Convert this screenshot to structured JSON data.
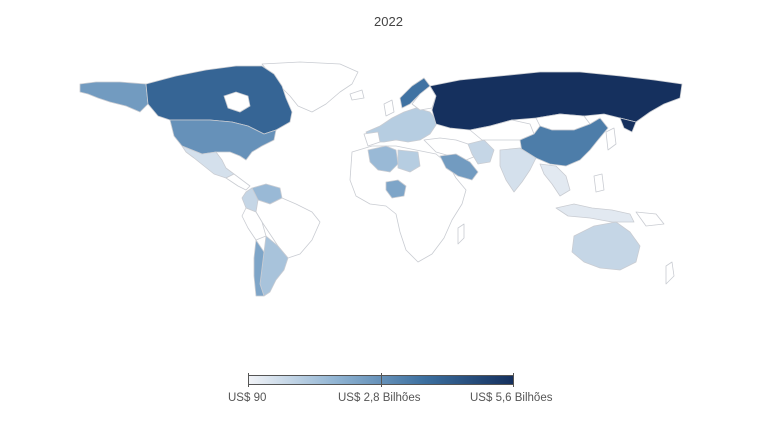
{
  "title": "2022",
  "legend": {
    "min_label": "US$ 90",
    "mid_label": "US$ 2,8 Bilhões",
    "max_label": "US$ 5,6 Bilhões",
    "colors": [
      "#f1f3f7",
      "#8fb3d2",
      "#3c6f9f",
      "#15305e"
    ]
  },
  "chart_data": {
    "type": "choropleth",
    "value_range": [
      90,
      5600000000
    ],
    "regions": [
      {
        "name": "Russia",
        "level": 1.0
      },
      {
        "name": "Canada",
        "level": 0.72
      },
      {
        "name": "Greenland",
        "level": 0.0
      },
      {
        "name": "Alaska",
        "level": 0.45
      },
      {
        "name": "United States",
        "level": 0.5
      },
      {
        "name": "China",
        "level": 0.6
      },
      {
        "name": "Norway",
        "level": 0.65
      },
      {
        "name": "Kazakhstan",
        "level": 0.0
      },
      {
        "name": "Mongolia",
        "level": 0.0
      },
      {
        "name": "Mexico",
        "level": 0.1
      },
      {
        "name": "Brazil",
        "level": 0.0
      },
      {
        "name": "Argentina",
        "level": 0.25
      },
      {
        "name": "Chile",
        "level": 0.4
      },
      {
        "name": "Australia",
        "level": 0.15
      },
      {
        "name": "Africa",
        "level": 0.0
      },
      {
        "name": "Nigeria",
        "level": 0.4
      },
      {
        "name": "Algeria",
        "level": 0.3
      },
      {
        "name": "Libya",
        "level": 0.2
      },
      {
        "name": "Saudi Arabia",
        "level": 0.45
      },
      {
        "name": "Iran",
        "level": 0.15
      },
      {
        "name": "India",
        "level": 0.1
      },
      {
        "name": "Europe",
        "level": 0.2
      },
      {
        "name": "Venezuela",
        "level": 0.3
      },
      {
        "name": "Colombia",
        "level": 0.15
      },
      {
        "name": "Southeast Asia",
        "level": 0.05
      },
      {
        "name": "Indonesia",
        "level": 0.05
      }
    ]
  }
}
